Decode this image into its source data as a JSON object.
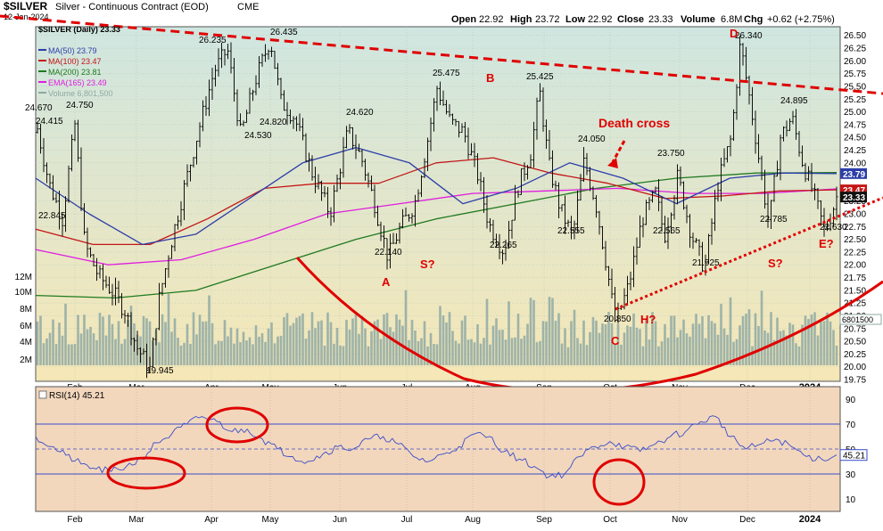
{
  "header": {
    "symbol": "$SILVER",
    "name": "Silver - Continuous Contract (EOD)",
    "exchange": "CME",
    "date": "12-Jan-2024",
    "quote": {
      "open_label": "Open",
      "open": "22.92",
      "high_label": "High",
      "high": "23.72",
      "low_label": "Low",
      "low": "22.92",
      "close_label": "Close",
      "close": "23.33",
      "volume_label": "Volume",
      "volume": "6.8M",
      "chg_label": "Chg",
      "chg": "+0.62 (+2.75%)"
    }
  },
  "colors": {
    "price_bg_top": "#cfe6e0",
    "price_bg_bottom": "#f6e7b6",
    "rsi_bg": "#f2d7bd",
    "price_bar": "#111111",
    "ma50": "#2d3ea8",
    "ma100": "#c41616",
    "ma200": "#1f7a1f",
    "ema165": "#e01ce0",
    "volume": "#8fa9a4",
    "rsi_line": "#3a4cc8",
    "annotation_red": "#e00000"
  },
  "chart_data": [
    {
      "type": "line",
      "title": "$SILVER Silver - Continuous Contract (EOD) CME",
      "subtitle": "12-Jan-2024",
      "legend": [
        {
          "label": "$SILVER (Daily) 23.33",
          "color": "#111111"
        },
        {
          "label": "MA(50) 23.79",
          "color": "#2d3ea8"
        },
        {
          "label": "MA(100) 23.47",
          "color": "#c41616"
        },
        {
          "label": "MA(200) 23.81",
          "color": "#1f7a1f"
        },
        {
          "label": "EMA(165) 23.49",
          "color": "#e01ce0"
        },
        {
          "label": "Volume 6,801,500",
          "color": "#8fa9a4"
        }
      ],
      "legend_position": "top-left",
      "x_labels": [
        "Feb",
        "Mar",
        "Apr",
        "May",
        "Jun",
        "Jul",
        "Aug",
        "Sep",
        "Oct",
        "Nov",
        "Dec",
        "2024"
      ],
      "y_ticks": [
        "19.75",
        "20.00",
        "20.25",
        "20.50",
        "20.75",
        "21.00",
        "21.25",
        "21.50",
        "21.75",
        "22.00",
        "22.25",
        "22.50",
        "22.75",
        "23.00",
        "23.25",
        "23.50",
        "23.75",
        "24.00",
        "24.25",
        "24.50",
        "24.75",
        "25.00",
        "25.25",
        "25.50",
        "25.75",
        "26.00",
        "26.25",
        "26.50"
      ],
      "ylim": [
        19.75,
        26.6
      ],
      "volume_ticks": [
        "2M",
        "4M",
        "6M",
        "8M",
        "10M",
        "12M"
      ],
      "right_axis_badges": [
        {
          "label": "23.79",
          "value": 23.79,
          "color": "#2d3ea8"
        },
        {
          "label": "23.47",
          "value": 23.47,
          "color": "#c41616"
        },
        {
          "label": "23.33",
          "value": 23.33,
          "color": "#111111"
        }
      ],
      "volume_badge": "6801500",
      "series": [
        {
          "name": "$SILVER (Daily)",
          "x": [
            "Jan",
            "Feb",
            "Feb",
            "Mar",
            "Mar",
            "Apr",
            "Apr",
            "May",
            "May",
            "May",
            "Jun",
            "Jun",
            "Jun",
            "Jul",
            "Jul",
            "Aug",
            "Aug",
            "Aug",
            "Sep",
            "Sep",
            "Sep",
            "Oct",
            "Oct",
            "Oct",
            "Nov",
            "Nov",
            "Nov",
            "Dec",
            "Dec",
            "Dec",
            "Jan",
            "Jan"
          ],
          "values": [
            24.67,
            23.2,
            22.0,
            21.0,
            19.95,
            21.9,
            23.2,
            25.3,
            26.2,
            25.0,
            23.5,
            24.6,
            23.5,
            22.14,
            23.0,
            25.47,
            24.7,
            22.8,
            22.27,
            24.0,
            25.4,
            23.3,
            22.56,
            20.85,
            22.5,
            23.2,
            22.0,
            21.93,
            24.2,
            26.34,
            23.2,
            23.33
          ]
        },
        {
          "name": "MA(50)",
          "values": [
            23.7,
            23.0,
            22.4,
            22.6,
            23.3,
            24.0,
            24.3,
            24.0,
            23.2,
            23.5,
            24.0,
            23.7,
            23.2,
            23.7,
            23.8,
            23.79
          ]
        },
        {
          "name": "MA(100)",
          "values": [
            22.7,
            22.4,
            22.4,
            22.9,
            23.5,
            23.6,
            23.6,
            24.0,
            24.1,
            23.8,
            23.6,
            23.3,
            23.35,
            23.45,
            23.47
          ]
        },
        {
          "name": "MA(200)",
          "values": [
            21.4,
            21.35,
            21.5,
            22.0,
            22.5,
            22.9,
            23.2,
            23.5,
            23.7,
            23.8,
            23.81
          ]
        },
        {
          "name": "EMA(165)",
          "values": [
            22.3,
            22.0,
            22.1,
            22.5,
            23.0,
            23.2,
            23.4,
            23.45,
            23.5,
            23.4,
            23.4,
            23.49
          ]
        }
      ],
      "price_labels": [
        {
          "text": "24.670",
          "x": "Jan",
          "y": 24.67
        },
        {
          "text": "24.415",
          "x": "Jan",
          "y": 24.415
        },
        {
          "text": "24.750",
          "x": "Feb",
          "y": 24.75
        },
        {
          "text": "22.845",
          "x": "Jan",
          "y": 22.845
        },
        {
          "text": "19.945",
          "x": "Mar",
          "y": 19.945
        },
        {
          "text": "26.235",
          "x": "Apr",
          "y": 26.235
        },
        {
          "text": "26.435",
          "x": "May",
          "y": 26.435
        },
        {
          "text": "24.530",
          "x": "Apr",
          "y": 24.53
        },
        {
          "text": "24.820",
          "x": "May",
          "y": 24.82
        },
        {
          "text": "24.620",
          "x": "Jun",
          "y": 24.62
        },
        {
          "text": "22.140",
          "x": "Jun",
          "y": 22.14
        },
        {
          "text": "25.475",
          "x": "Jul",
          "y": 25.475
        },
        {
          "text": "22.265",
          "x": "Aug",
          "y": 22.265
        },
        {
          "text": "25.425",
          "x": "Sep",
          "y": 25.425
        },
        {
          "text": "24.050",
          "x": "Sep",
          "y": 24.05
        },
        {
          "text": "22.555",
          "x": "Sep",
          "y": 22.555
        },
        {
          "text": "20.850",
          "x": "Oct",
          "y": 20.85
        },
        {
          "text": "23.750",
          "x": "Nov",
          "y": 23.75
        },
        {
          "text": "22.565",
          "x": "Nov",
          "y": 22.565
        },
        {
          "text": "21.925",
          "x": "Nov",
          "y": 21.925
        },
        {
          "text": "26.340",
          "x": "Dec",
          "y": 26.34
        },
        {
          "text": "24.895",
          "x": "Dec",
          "y": 24.895
        },
        {
          "text": "22.785",
          "x": "Dec",
          "y": 22.785
        },
        {
          "text": "22.630",
          "x": "Jan",
          "y": 22.63
        }
      ],
      "annotations": [
        {
          "text": "A",
          "color": "#e00000"
        },
        {
          "text": "B",
          "color": "#e00000"
        },
        {
          "text": "C",
          "color": "#e00000"
        },
        {
          "text": "D",
          "color": "#e00000"
        },
        {
          "text": "E?",
          "color": "#e00000"
        },
        {
          "text": "S?",
          "color": "#e00000"
        },
        {
          "text": "H?",
          "color": "#e00000"
        },
        {
          "text": "S?",
          "color": "#e00000"
        },
        {
          "text": "Death cross",
          "color": "#e00000"
        }
      ]
    },
    {
      "type": "line",
      "legend": [
        {
          "label": "RSI(14) 45.21",
          "color": "#3a4cc8"
        }
      ],
      "y_ticks": [
        "10",
        "30",
        "50",
        "70",
        "90"
      ],
      "ylim": [
        0,
        100
      ],
      "reference_lines": [
        30,
        50,
        70
      ],
      "right_axis_badge": "45.21",
      "x_labels": [
        "Feb",
        "Mar",
        "Apr",
        "May",
        "Jun",
        "Jul",
        "Aug",
        "Sep",
        "Oct",
        "Nov",
        "Dec",
        "2024"
      ],
      "series": [
        {
          "name": "RSI(14)",
          "values": [
            60,
            52,
            45,
            38,
            34,
            32,
            36,
            42,
            55,
            62,
            70,
            76,
            72,
            64,
            66,
            58,
            50,
            44,
            40,
            46,
            52,
            50,
            58,
            60,
            54,
            44,
            40,
            46,
            52,
            62,
            60,
            48,
            42,
            36,
            28,
            30,
            44,
            52,
            56,
            52,
            48,
            54,
            60,
            64,
            72,
            76,
            60,
            50,
            54,
            58,
            52,
            44,
            42,
            45.21
          ]
        }
      ]
    }
  ]
}
